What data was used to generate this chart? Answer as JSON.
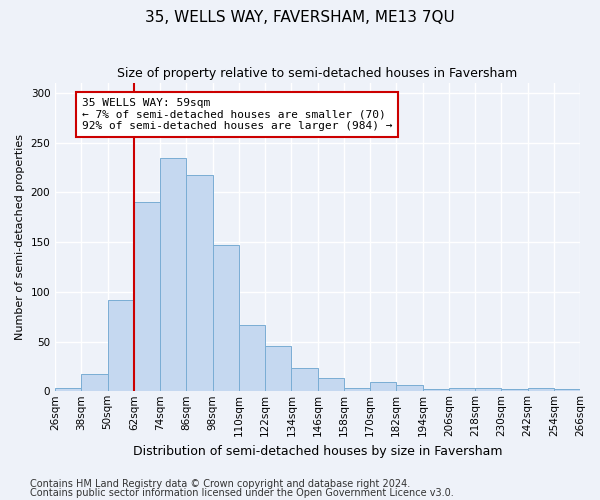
{
  "title": "35, WELLS WAY, FAVERSHAM, ME13 7QU",
  "subtitle": "Size of property relative to semi-detached houses in Faversham",
  "xlabel": "Distribution of semi-detached houses by size in Faversham",
  "ylabel": "Number of semi-detached properties",
  "bin_labels": [
    "26sqm",
    "38sqm",
    "50sqm",
    "62sqm",
    "74sqm",
    "86sqm",
    "98sqm",
    "110sqm",
    "122sqm",
    "134sqm",
    "146sqm",
    "158sqm",
    "170sqm",
    "182sqm",
    "194sqm",
    "206sqm",
    "218sqm",
    "230sqm",
    "242sqm",
    "254sqm",
    "266sqm"
  ],
  "bar_values": [
    3,
    17,
    92,
    190,
    235,
    218,
    147,
    67,
    46,
    23,
    13,
    3,
    9,
    6,
    2,
    3,
    3,
    2,
    3,
    2
  ],
  "bar_color": "#c5d8f0",
  "bar_edge_color": "#7aadd4",
  "annotation_text": "35 WELLS WAY: 59sqm\n← 7% of semi-detached houses are smaller (70)\n92% of semi-detached houses are larger (984) →",
  "annotation_box_color": "#ffffff",
  "annotation_box_edge_color": "#cc0000",
  "vline_color": "#cc0000",
  "footnote1": "Contains HM Land Registry data © Crown copyright and database right 2024.",
  "footnote2": "Contains public sector information licensed under the Open Government Licence v3.0.",
  "ylim": [
    0,
    310
  ],
  "yticks": [
    0,
    50,
    100,
    150,
    200,
    250,
    300
  ],
  "background_color": "#eef2f9",
  "grid_color": "#ffffff",
  "title_fontsize": 11,
  "subtitle_fontsize": 9,
  "xlabel_fontsize": 9,
  "ylabel_fontsize": 8,
  "footnote_fontsize": 7,
  "tick_fontsize": 7.5,
  "annotation_fontsize": 8
}
